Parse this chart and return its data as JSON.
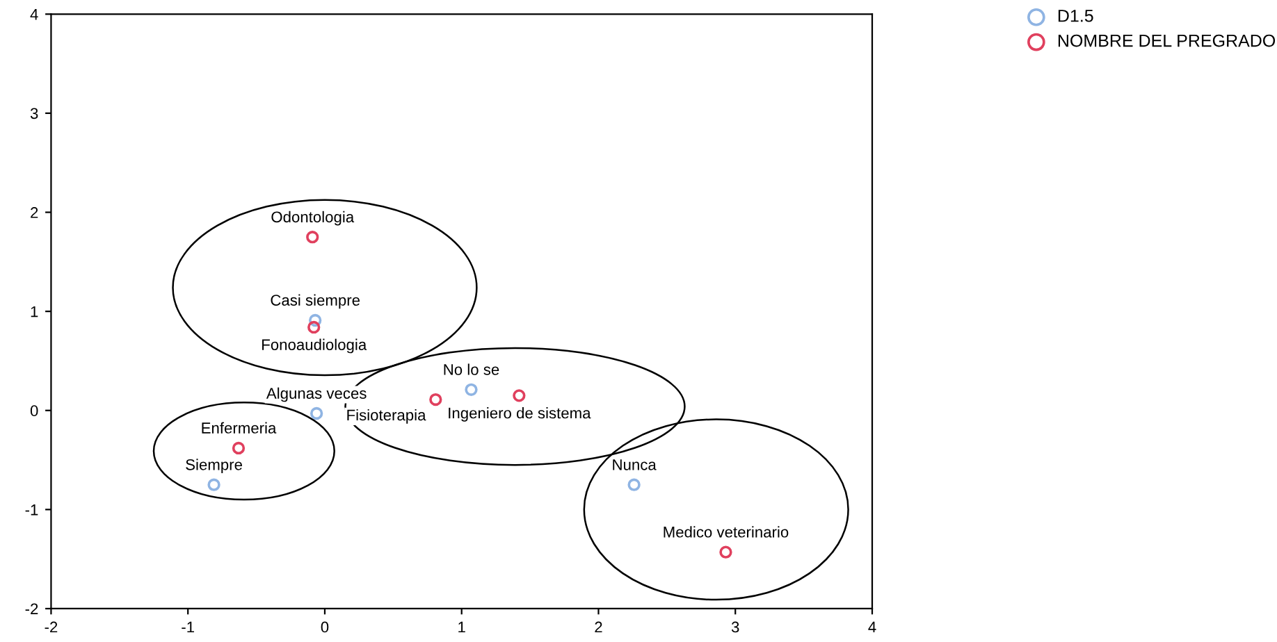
{
  "chart_data": {
    "type": "scatter",
    "xlim": [
      -2,
      4
    ],
    "ylim": [
      -2,
      4
    ],
    "xticks": [
      -2,
      -1,
      0,
      1,
      2,
      3,
      4
    ],
    "yticks": [
      -2,
      -1,
      0,
      1,
      2,
      3,
      4
    ],
    "grid": false,
    "legend": "top right",
    "marker": "circle",
    "series": [
      {
        "name": "D1.5",
        "color": "#8fb4e3",
        "x": [
          -0.07,
          -0.06,
          -0.81,
          1.07,
          2.26
        ],
        "values": [
          0.91,
          -0.03,
          -0.75,
          0.21,
          -0.75
        ]
      },
      {
        "name": "NOMBRE DEL PREGRADO",
        "color": "#e0405e",
        "x": [
          -0.09,
          -0.08,
          -0.63,
          0.81,
          1.42,
          2.93
        ],
        "values": [
          1.75,
          0.84,
          -0.38,
          0.11,
          0.15,
          -1.43
        ]
      }
    ],
    "annotations": [
      {
        "text": "Odontologia",
        "x": -0.09,
        "y": 1.75
      },
      {
        "text": "Casi siempre",
        "x": -0.07,
        "y": 0.91
      },
      {
        "text": "Fonoaudiologia",
        "x": -0.08,
        "y": 0.84
      },
      {
        "text": "No lo se",
        "x": 1.07,
        "y": 0.21
      },
      {
        "text": "Algunas veces",
        "x": -0.06,
        "y": -0.03
      },
      {
        "text": "Ingeniero de sistema",
        "x": 1.42,
        "y": 0.15
      },
      {
        "text": "Fisioterapia",
        "x": 0.81,
        "y": 0.11
      },
      {
        "text": "Enfermeria",
        "x": -0.63,
        "y": -0.38
      },
      {
        "text": "Siempre",
        "x": -0.81,
        "y": -0.75
      },
      {
        "text": "Nunca",
        "x": 2.26,
        "y": -0.75
      },
      {
        "text": "Medico veterinario",
        "x": 2.93,
        "y": -1.43
      }
    ]
  }
}
